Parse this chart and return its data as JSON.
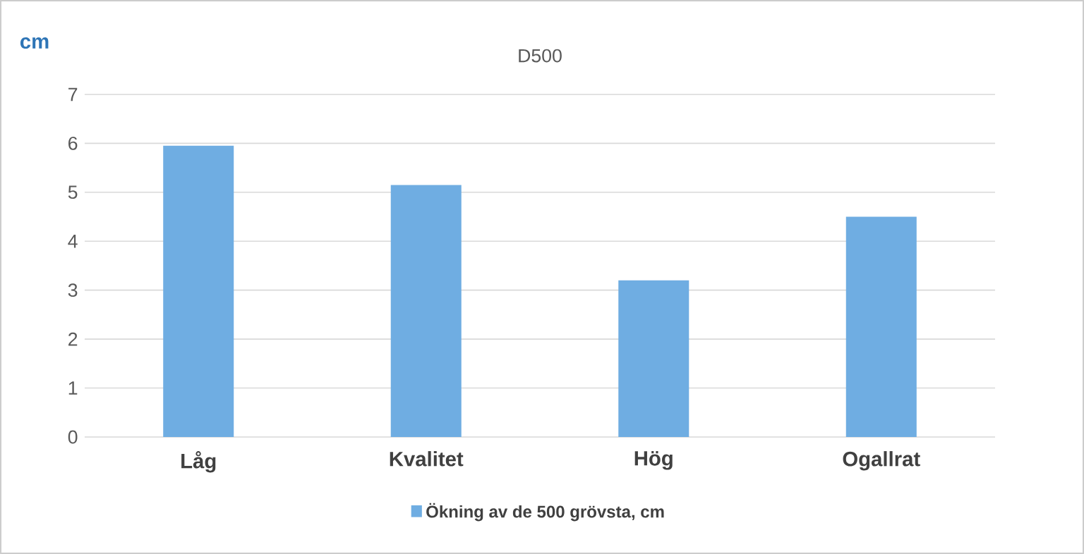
{
  "chart_data": {
    "type": "bar",
    "title": "D500",
    "ylabel": "cm",
    "categories": [
      "Låg",
      "Kvalitet",
      "Hög",
      "Ogallrat"
    ],
    "series": [
      {
        "name": "Ökning av de 500 grövsta, cm",
        "color": "#6fade2",
        "values": [
          5.95,
          5.15,
          3.2,
          4.5
        ]
      }
    ],
    "ylim": [
      0,
      7
    ],
    "yticks": [
      0,
      1,
      2,
      3,
      4,
      5,
      6,
      7
    ],
    "grid": "y",
    "legend": "bottom"
  }
}
